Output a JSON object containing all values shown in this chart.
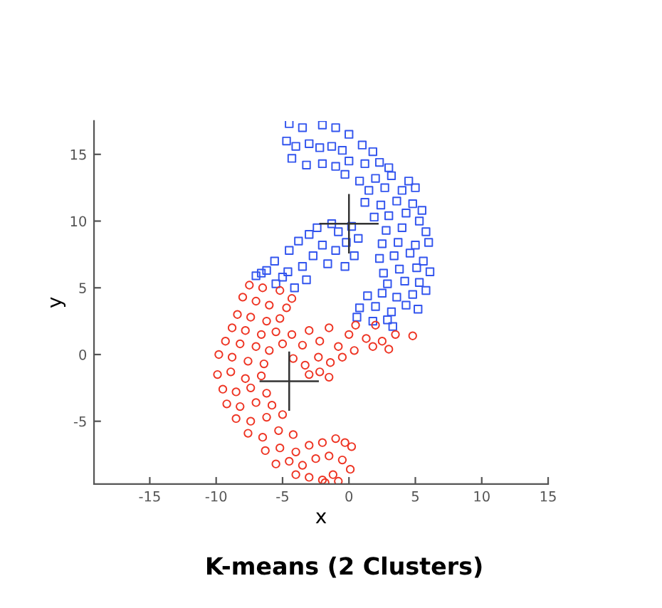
{
  "chart_data": {
    "type": "scatter",
    "title": "K-means (2 Clusters)",
    "xlabel": "x",
    "ylabel": "y",
    "xlim": [
      -19.2,
      15
    ],
    "ylim": [
      -9.7,
      17.5
    ],
    "xticks": [
      -15,
      -10,
      -5,
      0,
      5,
      10,
      15
    ],
    "yticks": [
      -5,
      0,
      5,
      10,
      15
    ],
    "grid": false,
    "legend": false,
    "series": [
      {
        "color": "#3355ee",
        "marker": "square",
        "x": [
          -4.5,
          -3.5,
          -2,
          -1,
          0,
          -4.7,
          -4,
          -3,
          -2.2,
          -1.3,
          -0.5,
          1,
          1.8,
          -4.3,
          -3.2,
          -2,
          -1,
          0,
          1.2,
          2.3,
          3,
          -0.3,
          0.8,
          2,
          3.2,
          4.5,
          1.5,
          2.7,
          4,
          5,
          1.2,
          2.4,
          3.6,
          4.8,
          5.5,
          1.9,
          3,
          4.3,
          5.3,
          2.8,
          4,
          5.8,
          2.5,
          3.7,
          5,
          6,
          2.3,
          3.4,
          4.6,
          5.6,
          2.6,
          3.8,
          5.1,
          6.1,
          2.9,
          4.2,
          5.3,
          1.4,
          2.5,
          3.6,
          4.8,
          5.8,
          0.8,
          2,
          3.2,
          4.3,
          5.2,
          0.6,
          1.8,
          2.9,
          3.3,
          -7,
          -6.2,
          -5.5,
          -5.6,
          -4.6,
          -4.5,
          -3.8,
          -3.5,
          -2.7,
          -3,
          -2,
          -1.6,
          -1,
          -0.8,
          -0.2,
          0.4,
          -0.3,
          -4.1,
          -5,
          -6.6,
          -2.4,
          -1.3,
          0.2,
          0.7,
          -3.2
        ],
        "values": [
          17.3,
          17,
          17.2,
          17,
          16.5,
          16,
          15.6,
          15.8,
          15.5,
          15.6,
          15.3,
          15.7,
          15.2,
          14.7,
          14.2,
          14.3,
          14.1,
          14.5,
          14.3,
          14.4,
          14,
          13.5,
          13,
          13.2,
          13.4,
          13,
          12.3,
          12.5,
          12.3,
          12.5,
          11.4,
          11.2,
          11.5,
          11.3,
          10.8,
          10.3,
          10.4,
          10.6,
          10,
          9.3,
          9.5,
          9.2,
          8.3,
          8.4,
          8.2,
          8.4,
          7.2,
          7.4,
          7.6,
          7,
          6.1,
          6.4,
          6.5,
          6.2,
          5.3,
          5.5,
          5.4,
          4.4,
          4.6,
          4.3,
          4.5,
          4.8,
          3.5,
          3.6,
          3.2,
          3.7,
          3.4,
          2.8,
          2.5,
          2.6,
          2.1,
          5.9,
          6.3,
          5.3,
          7,
          6.2,
          7.8,
          8.5,
          6.6,
          7.4,
          9,
          8.2,
          6.8,
          7.8,
          9.2,
          8.4,
          7.4,
          6.6,
          5,
          5.8,
          6.1,
          9.5,
          9.8,
          9.6,
          8.7,
          5.6
        ]
      },
      {
        "color": "#ee3322",
        "marker": "circle",
        "x": [
          -7.5,
          -6.5,
          -5.2,
          -4.3,
          -8,
          -7,
          -6,
          -4.7,
          -8.4,
          -7.4,
          -6.2,
          -5.2,
          -8.8,
          -7.8,
          -6.6,
          -5.5,
          -9.3,
          -8.2,
          -7,
          -6,
          -9.8,
          -8.8,
          -7.6,
          -6.4,
          -9.9,
          -8.9,
          -7.8,
          -6.6,
          -9.5,
          -8.5,
          -7.4,
          -6.2,
          -9.2,
          -8.2,
          -7,
          -5.8,
          -8.5,
          -7.4,
          -6.2,
          -5,
          -7.6,
          -6.5,
          -5.3,
          -4.2,
          -6.3,
          -5.2,
          -4,
          -3,
          -2,
          -1,
          -0.3,
          -5.5,
          -4.5,
          -3.5,
          -2.5,
          -1.5,
          -0.5,
          0.2,
          -4,
          -3,
          -2,
          -1.2,
          0.1,
          -1.8,
          -0.8,
          -5,
          -4.3,
          -3.5,
          -3,
          -2.2,
          -1.5,
          -0.8,
          0,
          0.5,
          1.3,
          2,
          2.5,
          3.5,
          4.8,
          -4.2,
          -3.3,
          -2.3,
          -1.4,
          -0.5,
          0.4,
          1.8,
          3,
          -3,
          -2.2,
          -1.5
        ],
        "values": [
          5.2,
          5,
          4.8,
          4.2,
          4.3,
          4,
          3.7,
          3.5,
          3,
          2.8,
          2.5,
          2.7,
          2,
          1.8,
          1.5,
          1.7,
          1,
          0.8,
          0.6,
          0.3,
          0,
          -0.2,
          -0.5,
          -0.7,
          -1.5,
          -1.3,
          -1.8,
          -1.6,
          -2.6,
          -2.8,
          -2.5,
          -2.9,
          -3.7,
          -3.9,
          -3.6,
          -3.8,
          -4.8,
          -5,
          -4.7,
          -4.5,
          -5.9,
          -6.2,
          -5.7,
          -6,
          -7.2,
          -7,
          -7.3,
          -6.8,
          -6.6,
          -6.3,
          -6.6,
          -8.2,
          -8,
          -8.3,
          -7.8,
          -7.6,
          -7.9,
          -6.9,
          -9,
          -9.2,
          -9.4,
          -9,
          -8.6,
          -9.6,
          -9.5,
          0.8,
          1.5,
          0.7,
          1.8,
          1,
          2,
          0.6,
          1.5,
          2.2,
          1.2,
          2.2,
          1,
          1.5,
          1.4,
          -0.3,
          -0.8,
          -0.2,
          -0.6,
          -0.2,
          0.3,
          0.6,
          0.4,
          -1.5,
          -1.3,
          -1.7
        ]
      },
      {
        "color": "#333333",
        "marker": "cross",
        "x": [
          0,
          -4.5
        ],
        "values": [
          9.8,
          -2
        ]
      }
    ]
  }
}
